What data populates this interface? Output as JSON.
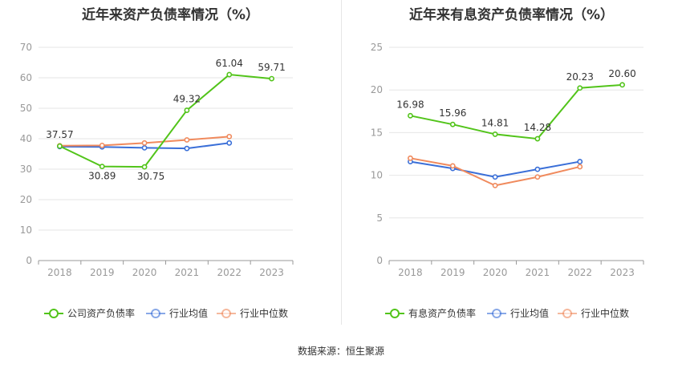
{
  "source": "数据来源：恒生聚源",
  "chart_data": [
    {
      "type": "line",
      "title": "近年来资产负债率情况（%）",
      "categories": [
        "2018",
        "2019",
        "2020",
        "2021",
        "2022",
        "2023"
      ],
      "ylim": [
        0,
        70
      ],
      "yticks": [
        0,
        10,
        20,
        30,
        40,
        50,
        60,
        70
      ],
      "grid": true,
      "legend_position": "bottom",
      "series": [
        {
          "name": "公司资产负债率",
          "color": "#52c41a",
          "values": [
            37.57,
            30.89,
            30.75,
            49.32,
            61.04,
            59.71
          ],
          "labels": [
            "37.57",
            "30.89",
            "30.75",
            "49.32",
            "61.04",
            "59.71"
          ]
        },
        {
          "name": "行业均值",
          "color": "#3a6fd8",
          "values": [
            37.4,
            37.3,
            37.0,
            36.8,
            38.6,
            null
          ]
        },
        {
          "name": "行业中位数",
          "color": "#f08a5d",
          "values": [
            37.7,
            37.8,
            38.6,
            39.6,
            40.7,
            null
          ]
        }
      ]
    },
    {
      "type": "line",
      "title": "近年来有息资产负债率情况（%）",
      "categories": [
        "2018",
        "2019",
        "2020",
        "2021",
        "2022",
        "2023"
      ],
      "ylim": [
        0,
        25
      ],
      "yticks": [
        0,
        5,
        10,
        15,
        20,
        25
      ],
      "grid": true,
      "legend_position": "bottom",
      "series": [
        {
          "name": "有息资产负债率",
          "color": "#52c41a",
          "values": [
            16.98,
            15.96,
            14.81,
            14.28,
            20.23,
            20.6
          ],
          "labels": [
            "16.98",
            "15.96",
            "14.81",
            "14.28",
            "20.23",
            "20.60"
          ]
        },
        {
          "name": "行业均值",
          "color": "#3a6fd8",
          "values": [
            11.6,
            10.8,
            9.8,
            10.7,
            11.6,
            null
          ]
        },
        {
          "name": "行业中位数",
          "color": "#f08a5d",
          "values": [
            12.0,
            11.1,
            8.8,
            9.8,
            11.0,
            null
          ]
        }
      ]
    }
  ]
}
